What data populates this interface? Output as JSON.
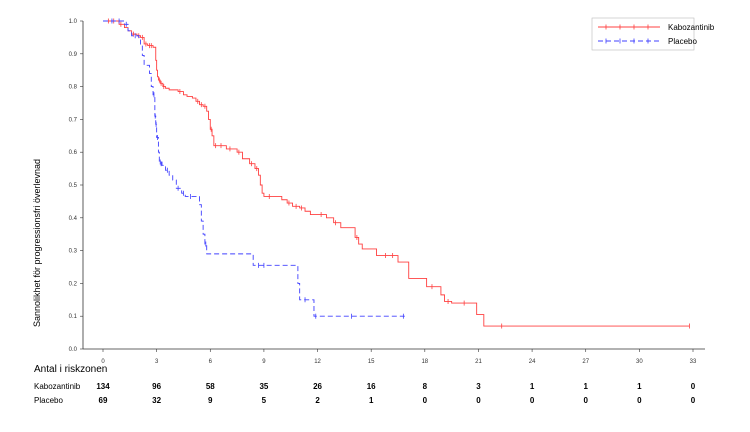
{
  "chart_data": {
    "type": "line",
    "subtype": "kaplan-meier",
    "ylabel": "Sannolikhet för progressionsfri överlevnad",
    "xlabel": "",
    "xlim": [
      0,
      33
    ],
    "ylim": [
      0.0,
      1.0
    ],
    "x_ticks": [
      "0",
      "3",
      "6",
      "9",
      "12",
      "15",
      "18",
      "21",
      "24",
      "27",
      "30",
      "33"
    ],
    "y_ticks": [
      "0.0",
      "0.1",
      "0.2",
      "0.3",
      "0.4",
      "0.5",
      "0.6",
      "0.7",
      "0.8",
      "0.9",
      "1.0"
    ],
    "grid": false,
    "legend": "top-right",
    "series": [
      {
        "name": "Kabozantinib",
        "color": "#ff4040",
        "dash": "solid",
        "points": [
          [
            0,
            1.0
          ],
          [
            0.9,
            0.99
          ],
          [
            1.2,
            0.98
          ],
          [
            1.4,
            0.97
          ],
          [
            1.6,
            0.96
          ],
          [
            1.9,
            0.955
          ],
          [
            2.1,
            0.95
          ],
          [
            2.3,
            0.93
          ],
          [
            2.5,
            0.925
          ],
          [
            2.8,
            0.92
          ],
          [
            2.95,
            0.88
          ],
          [
            3.0,
            0.85
          ],
          [
            3.05,
            0.83
          ],
          [
            3.1,
            0.82
          ],
          [
            3.2,
            0.81
          ],
          [
            3.35,
            0.8
          ],
          [
            3.5,
            0.795
          ],
          [
            3.7,
            0.79
          ],
          [
            4.2,
            0.785
          ],
          [
            4.5,
            0.775
          ],
          [
            4.7,
            0.77
          ],
          [
            5.0,
            0.765
          ],
          [
            5.2,
            0.755
          ],
          [
            5.4,
            0.745
          ],
          [
            5.6,
            0.74
          ],
          [
            5.8,
            0.725
          ],
          [
            5.9,
            0.7
          ],
          [
            6.0,
            0.67
          ],
          [
            6.1,
            0.65
          ],
          [
            6.2,
            0.62
          ],
          [
            6.9,
            0.61
          ],
          [
            7.5,
            0.6
          ],
          [
            7.8,
            0.58
          ],
          [
            8.2,
            0.565
          ],
          [
            8.5,
            0.55
          ],
          [
            8.7,
            0.53
          ],
          [
            8.8,
            0.5
          ],
          [
            8.9,
            0.475
          ],
          [
            9.0,
            0.465
          ],
          [
            10.0,
            0.455
          ],
          [
            10.3,
            0.445
          ],
          [
            10.6,
            0.435
          ],
          [
            11.0,
            0.43
          ],
          [
            11.3,
            0.42
          ],
          [
            11.6,
            0.41
          ],
          [
            12.5,
            0.4
          ],
          [
            12.9,
            0.385
          ],
          [
            13.3,
            0.37
          ],
          [
            14.1,
            0.34
          ],
          [
            14.3,
            0.32
          ],
          [
            14.5,
            0.305
          ],
          [
            15.3,
            0.285
          ],
          [
            16.5,
            0.265
          ],
          [
            17.1,
            0.215
          ],
          [
            18.1,
            0.19
          ],
          [
            18.9,
            0.165
          ],
          [
            19.1,
            0.145
          ],
          [
            19.5,
            0.14
          ],
          [
            20.9,
            0.105
          ],
          [
            21.3,
            0.07
          ],
          [
            32.8,
            0.07
          ]
        ],
        "censor_marks": [
          [
            0.3,
            1.0
          ],
          [
            0.6,
            1.0
          ],
          [
            1.0,
            0.99
          ],
          [
            1.7,
            0.96
          ],
          [
            2.0,
            0.955
          ],
          [
            2.2,
            0.95
          ],
          [
            2.4,
            0.93
          ],
          [
            2.6,
            0.925
          ],
          [
            2.7,
            0.925
          ],
          [
            3.15,
            0.82
          ],
          [
            3.25,
            0.81
          ],
          [
            3.4,
            0.8
          ],
          [
            4.3,
            0.785
          ],
          [
            5.3,
            0.755
          ],
          [
            5.5,
            0.745
          ],
          [
            5.7,
            0.74
          ],
          [
            6.05,
            0.67
          ],
          [
            6.3,
            0.62
          ],
          [
            6.6,
            0.62
          ],
          [
            7.1,
            0.61
          ],
          [
            7.6,
            0.6
          ],
          [
            8.3,
            0.565
          ],
          [
            8.6,
            0.55
          ],
          [
            9.3,
            0.465
          ],
          [
            10.4,
            0.445
          ],
          [
            10.8,
            0.435
          ],
          [
            11.1,
            0.43
          ],
          [
            12.2,
            0.41
          ],
          [
            13.0,
            0.385
          ],
          [
            14.2,
            0.34
          ],
          [
            15.8,
            0.285
          ],
          [
            16.2,
            0.285
          ],
          [
            18.4,
            0.19
          ],
          [
            19.3,
            0.145
          ],
          [
            20.2,
            0.14
          ],
          [
            22.3,
            0.07
          ],
          [
            32.8,
            0.07
          ]
        ]
      },
      {
        "name": "Placebo",
        "color": "#4040ff",
        "dash": "dashed",
        "points": [
          [
            0,
            1.0
          ],
          [
            1.2,
            0.99
          ],
          [
            1.4,
            0.97
          ],
          [
            1.6,
            0.955
          ],
          [
            2.0,
            0.95
          ],
          [
            2.1,
            0.925
          ],
          [
            2.2,
            0.895
          ],
          [
            2.3,
            0.865
          ],
          [
            2.6,
            0.84
          ],
          [
            2.7,
            0.8
          ],
          [
            2.8,
            0.775
          ],
          [
            2.9,
            0.71
          ],
          [
            2.95,
            0.685
          ],
          [
            3.0,
            0.645
          ],
          [
            3.1,
            0.6
          ],
          [
            3.15,
            0.57
          ],
          [
            3.3,
            0.56
          ],
          [
            3.5,
            0.545
          ],
          [
            3.7,
            0.53
          ],
          [
            3.9,
            0.515
          ],
          [
            4.1,
            0.49
          ],
          [
            4.4,
            0.475
          ],
          [
            4.6,
            0.465
          ],
          [
            5.4,
            0.44
          ],
          [
            5.5,
            0.39
          ],
          [
            5.6,
            0.35
          ],
          [
            5.7,
            0.32
          ],
          [
            5.8,
            0.29
          ],
          [
            8.4,
            0.255
          ],
          [
            10.9,
            0.2
          ],
          [
            11.0,
            0.15
          ],
          [
            11.8,
            0.1
          ],
          [
            16.9,
            0.1
          ]
        ],
        "censor_marks": [
          [
            0.5,
            1.0
          ],
          [
            0.9,
            1.0
          ],
          [
            1.3,
            0.99
          ],
          [
            1.8,
            0.955
          ],
          [
            2.85,
            0.775
          ],
          [
            2.92,
            0.71
          ],
          [
            2.97,
            0.685
          ],
          [
            3.05,
            0.645
          ],
          [
            3.2,
            0.57
          ],
          [
            3.25,
            0.565
          ],
          [
            3.6,
            0.545
          ],
          [
            4.2,
            0.49
          ],
          [
            4.5,
            0.475
          ],
          [
            4.9,
            0.465
          ],
          [
            5.75,
            0.32
          ],
          [
            8.7,
            0.255
          ],
          [
            9.0,
            0.255
          ],
          [
            11.3,
            0.15
          ],
          [
            11.9,
            0.1
          ],
          [
            13.9,
            0.1
          ],
          [
            16.8,
            0.1
          ]
        ]
      }
    ]
  },
  "risk_table": {
    "title": "Antal i riskzonen",
    "rows": [
      {
        "name": "Kabozantinib",
        "values": [
          "134",
          "96",
          "58",
          "35",
          "26",
          "16",
          "8",
          "3",
          "1",
          "1",
          "1",
          "0"
        ]
      },
      {
        "name": "Placebo",
        "values": [
          "69",
          "32",
          "9",
          "5",
          "2",
          "1",
          "0",
          "0",
          "0",
          "0",
          "0",
          "0"
        ]
      }
    ]
  }
}
